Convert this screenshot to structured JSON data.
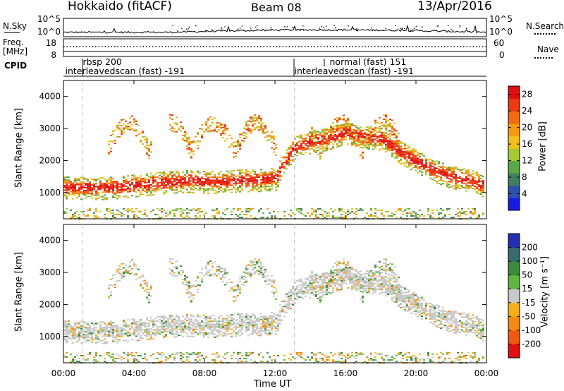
{
  "header": {
    "title": "Hokkaido (fitACF)",
    "beam": "Beam 08",
    "date": "13/Apr/2016"
  },
  "side_labels": {
    "nsky": "N.Sky",
    "nsearch": "N.Search",
    "freq": "Freq.",
    "freq_unit": "[MHz]",
    "nave": "Nave",
    "cpid": "CPID"
  },
  "noise_axis": {
    "left_ticks": [
      "10^5",
      "10^0"
    ],
    "right_ticks": [
      "10^5",
      "10^0"
    ]
  },
  "freq_axis": {
    "left_ticks": [
      "18",
      "8"
    ],
    "right_ticks": [
      "60",
      "0"
    ]
  },
  "cpid_labels": [
    {
      "text": "rbsp 200",
      "hour": 1.1,
      "row": 0
    },
    {
      "text": "interleavedscan (fast) -191",
      "hour": 0.1,
      "row": 1
    },
    {
      "text": "normal (fast) 151",
      "hour": 15.1,
      "row": 0
    },
    {
      "text": "interleavedscan (fast) -191",
      "hour": 13.1,
      "row": 1
    }
  ],
  "chart_data": [
    {
      "type": "heatmap",
      "panel": "power",
      "ylabel": "Slant Range [km]",
      "xlabel": "",
      "xlim_hours": [
        0,
        24
      ],
      "ylim": [
        180,
        4500
      ],
      "yticks": [
        1000,
        2000,
        3000,
        4000
      ],
      "colorbar": {
        "label": "Power [dB]",
        "ticks": [
          4,
          8,
          12,
          16,
          20,
          24,
          28
        ],
        "range": [
          0,
          30
        ],
        "colors": [
          "#1a1ae6",
          "#2a50b0",
          "#3f7f5f",
          "#5aa845",
          "#a8c832",
          "#f0c018",
          "#f59a10",
          "#f26a0e",
          "#ec3a10",
          "#e01010"
        ]
      }
    },
    {
      "type": "heatmap",
      "panel": "velocity",
      "ylabel": "Slant Range [km]",
      "xlabel": "Time UT",
      "xlim_hours": [
        0,
        24
      ],
      "ylim": [
        180,
        4500
      ],
      "yticks": [
        1000,
        2000,
        3000,
        4000
      ],
      "xticks": [
        "00:00",
        "04:00",
        "08:00",
        "12:00",
        "16:00",
        "20:00",
        "00:00"
      ],
      "colorbar": {
        "label": "Velocity [m s⁻¹]",
        "ticks": [
          "200",
          "100",
          "50",
          "15",
          "-15",
          "-50",
          "-100",
          "-200"
        ],
        "colors": [
          "#2030b0",
          "#3a6a70",
          "#3e8a3c",
          "#60b640",
          "#c8c8c8",
          "#f5b018",
          "#f58a10",
          "#f05a10",
          "#e01010"
        ]
      }
    }
  ],
  "scatter_features": {
    "main_band_km": [
      [
        0,
        1180
      ],
      [
        2,
        1150
      ],
      [
        3,
        1180
      ],
      [
        5,
        1300
      ],
      [
        6,
        1350
      ],
      [
        7,
        1380
      ],
      [
        8,
        1350
      ],
      [
        9,
        1350
      ],
      [
        10,
        1400
      ],
      [
        11,
        1400
      ],
      [
        12,
        1450
      ],
      [
        13,
        2400
      ],
      [
        14,
        2600
      ],
      [
        15,
        2700
      ],
      [
        16,
        2900
      ],
      [
        17,
        2750
      ],
      [
        18,
        2700
      ],
      [
        19,
        2300
      ],
      [
        20,
        2000
      ],
      [
        21,
        1700
      ],
      [
        22,
        1500
      ],
      [
        23,
        1400
      ],
      [
        24,
        1200
      ]
    ],
    "dashed_hours": [
      1.1,
      13.1
    ]
  }
}
